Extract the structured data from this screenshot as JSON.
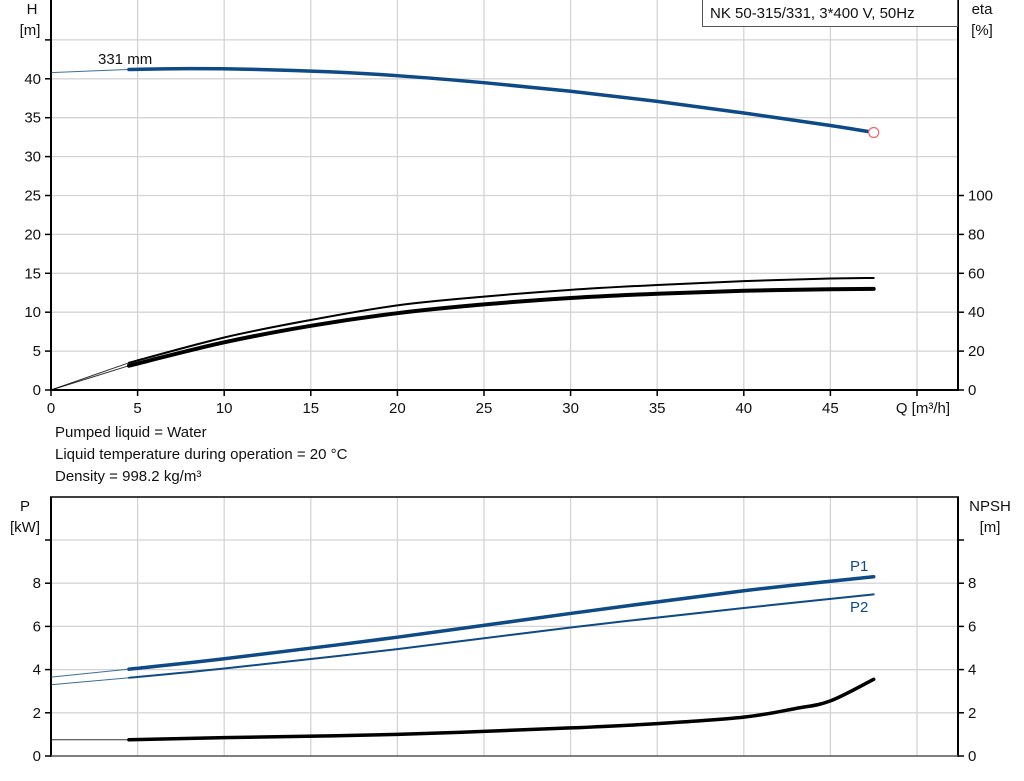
{
  "chart_data": [
    {
      "type": "line",
      "title": "NK 50-315/331, 3*400 V, 50Hz",
      "xlabel": "Q [m³/h]",
      "ylabel": "H\n[m]",
      "ylabel_name": "H",
      "ylabel_unit": "[m]",
      "y2label_name": "eta",
      "y2label_unit": "[%]",
      "xlim": [
        0,
        52.4
      ],
      "ylim": [
        0,
        50
      ],
      "y2lim": [
        0,
        200
      ],
      "xticks": [
        0,
        5,
        10,
        15,
        20,
        25,
        30,
        35,
        40,
        45
      ],
      "yticks": [
        0,
        5,
        10,
        15,
        20,
        25,
        30,
        35,
        40
      ],
      "y2ticks": [
        0,
        20,
        40,
        60,
        80,
        100
      ],
      "grid": true,
      "colors": {
        "head": "#0d4a86",
        "eta": "#000000",
        "end_marker": "#f06a6a"
      },
      "series": [
        {
          "name": "331 mm",
          "axis": "left",
          "color": "#0d4a86",
          "points": [
            [
              0,
              40.8
            ],
            [
              4.5,
              41.2
            ],
            [
              8,
              41.3
            ],
            [
              12,
              41.2
            ],
            [
              16,
              40.9
            ],
            [
              20,
              40.4
            ],
            [
              25,
              39.5
            ],
            [
              30,
              38.4
            ],
            [
              35,
              37.1
            ],
            [
              40,
              35.6
            ],
            [
              45,
              34.0
            ],
            [
              47.5,
              33.1
            ]
          ]
        },
        {
          "axis": "right",
          "color": "#000000",
          "weight": "thin",
          "points": [
            [
              0,
              0
            ],
            [
              4.5,
              14
            ],
            [
              10,
              27
            ],
            [
              15,
              36
            ],
            [
              20,
              43.5
            ],
            [
              25,
              48
            ],
            [
              30,
              51.5
            ],
            [
              35,
              54
            ],
            [
              40,
              56
            ],
            [
              45,
              57.3
            ],
            [
              47.5,
              57.6
            ]
          ]
        },
        {
          "axis": "right",
          "color": "#000000",
          "weight": "thick",
          "points": [
            [
              0,
              0
            ],
            [
              4.5,
              12.5
            ],
            [
              10,
              24.5
            ],
            [
              15,
              33
            ],
            [
              20,
              39.5
            ],
            [
              25,
              44
            ],
            [
              30,
              47.3
            ],
            [
              35,
              49.5
            ],
            [
              40,
              51
            ],
            [
              45,
              51.8
            ],
            [
              47.5,
              52
            ]
          ]
        }
      ]
    },
    {
      "type": "line",
      "ylabel_name": "P",
      "ylabel_unit": "[kW]",
      "y2label_name": "NPSH",
      "y2label_unit": "[m]",
      "xlim": [
        0,
        52.4
      ],
      "ylim": [
        0,
        11.9
      ],
      "y2lim": [
        0,
        11.9
      ],
      "yticks": [
        0,
        2,
        4,
        6,
        8
      ],
      "y2ticks": [
        0,
        2,
        4,
        6,
        8
      ],
      "grid": true,
      "series": [
        {
          "name": "P1",
          "color": "#0d4a86",
          "weight": "thick",
          "points": [
            [
              0,
              3.65
            ],
            [
              4.5,
              4.02
            ],
            [
              10,
              4.5
            ],
            [
              20,
              5.5
            ],
            [
              30,
              6.6
            ],
            [
              40,
              7.65
            ],
            [
              47.5,
              8.3
            ]
          ]
        },
        {
          "name": "P2",
          "color": "#0d4a86",
          "weight": "thin",
          "points": [
            [
              0,
              3.3
            ],
            [
              4.5,
              3.62
            ],
            [
              10,
              4.05
            ],
            [
              20,
              4.95
            ],
            [
              30,
              5.95
            ],
            [
              40,
              6.85
            ],
            [
              47.5,
              7.48
            ]
          ]
        },
        {
          "axis": "right",
          "color": "#000000",
          "weight": "thick",
          "points": [
            [
              0,
              0.75
            ],
            [
              4.5,
              0.75
            ],
            [
              10,
              0.85
            ],
            [
              20,
              1.0
            ],
            [
              30,
              1.3
            ],
            [
              35,
              1.5
            ],
            [
              40,
              1.8
            ],
            [
              43,
              2.2
            ],
            [
              45,
              2.55
            ],
            [
              47.5,
              3.55
            ]
          ]
        }
      ]
    }
  ],
  "notes": [
    "Pumped liquid = Water",
    "Liquid temperature during operation = 20 °C",
    "Density = 998.2 kg/m³"
  ]
}
